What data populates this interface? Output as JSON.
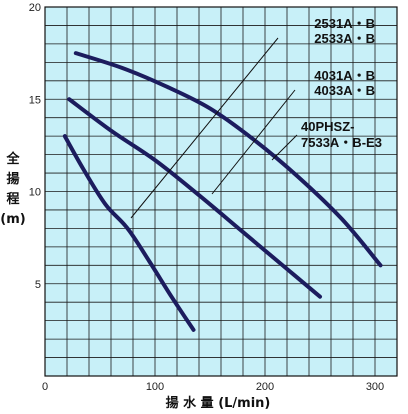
{
  "chart_data": {
    "type": "line",
    "title": "",
    "xlabel": "揚 水 量 (L/min)",
    "ylabel": [
      "全",
      "揚",
      "程",
      "(m)"
    ],
    "xlim": [
      0,
      320
    ],
    "ylim": [
      0,
      20
    ],
    "x_ticks": [
      0,
      100,
      200,
      300
    ],
    "y_ticks": [
      5,
      10,
      15,
      20
    ],
    "grid": true,
    "background_color": "#c8f0f8",
    "curve_color": "#1c1c5e",
    "series": [
      {
        "name": "2531A・B / 2533A・B",
        "label_lines": [
          "2531A・B",
          "2533A・B"
        ],
        "points": [
          [
            18,
            13.0
          ],
          [
            35,
            11.2
          ],
          [
            55,
            9.3
          ],
          [
            75,
            8.0
          ],
          [
            95,
            6.2
          ],
          [
            115,
            4.3
          ],
          [
            135,
            2.5
          ]
        ]
      },
      {
        "name": "4031A・B / 4033A・B",
        "label_lines": [
          "4031A・B",
          "4033A・B"
        ],
        "points": [
          [
            22,
            15.0
          ],
          [
            60,
            13.3
          ],
          [
            100,
            11.7
          ],
          [
            140,
            9.8
          ],
          [
            180,
            7.8
          ],
          [
            220,
            5.8
          ],
          [
            250,
            4.3
          ]
        ]
      },
      {
        "name": "40PHSZ-7533A・B-E3",
        "label_lines": [
          "40PHSZ-",
          "7533A・B-E3"
        ],
        "points": [
          [
            28,
            17.5
          ],
          [
            70,
            16.7
          ],
          [
            110,
            15.7
          ],
          [
            150,
            14.5
          ],
          [
            190,
            12.8
          ],
          [
            230,
            10.8
          ],
          [
            270,
            8.5
          ],
          [
            305,
            6.0
          ]
        ]
      }
    ]
  }
}
